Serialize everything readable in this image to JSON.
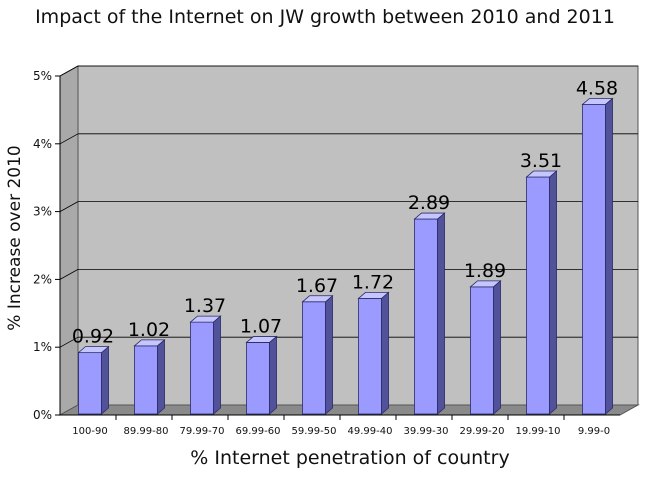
{
  "chart_data": {
    "type": "bar",
    "title": "Impact of the Internet on JW growth between 2010 and 2011",
    "xlabel": "% Internet penetration of country",
    "ylabel": "% Increase over 2010",
    "categories": [
      "100-90",
      "89.99-80",
      "79.99-70",
      "69.99-60",
      "59.99-50",
      "49.99-40",
      "39.99-30",
      "29.99-20",
      "19.99-10",
      "9.99-0"
    ],
    "values": [
      0.92,
      1.02,
      1.37,
      1.07,
      1.67,
      1.72,
      2.89,
      1.89,
      3.51,
      4.58
    ],
    "value_labels": [
      "0.92",
      "1.02",
      "1.37",
      "1.07",
      "1.67",
      "1.72",
      "2.89",
      "1.89",
      "3.51",
      "4.58"
    ],
    "ylim": [
      0,
      5
    ],
    "yticks": [
      0,
      1,
      2,
      3,
      4,
      5
    ],
    "ytick_labels": [
      "0%",
      "1%",
      "2%",
      "3%",
      "4%",
      "5%"
    ],
    "grid": true,
    "style": "3d",
    "colors": {
      "bar_front": "#9b9bff",
      "bar_side": "#52529a",
      "bar_top": "#c6c6ff",
      "wall": "#c0c0c0",
      "floor": "#8a8a8a",
      "grid": "#000000"
    }
  }
}
